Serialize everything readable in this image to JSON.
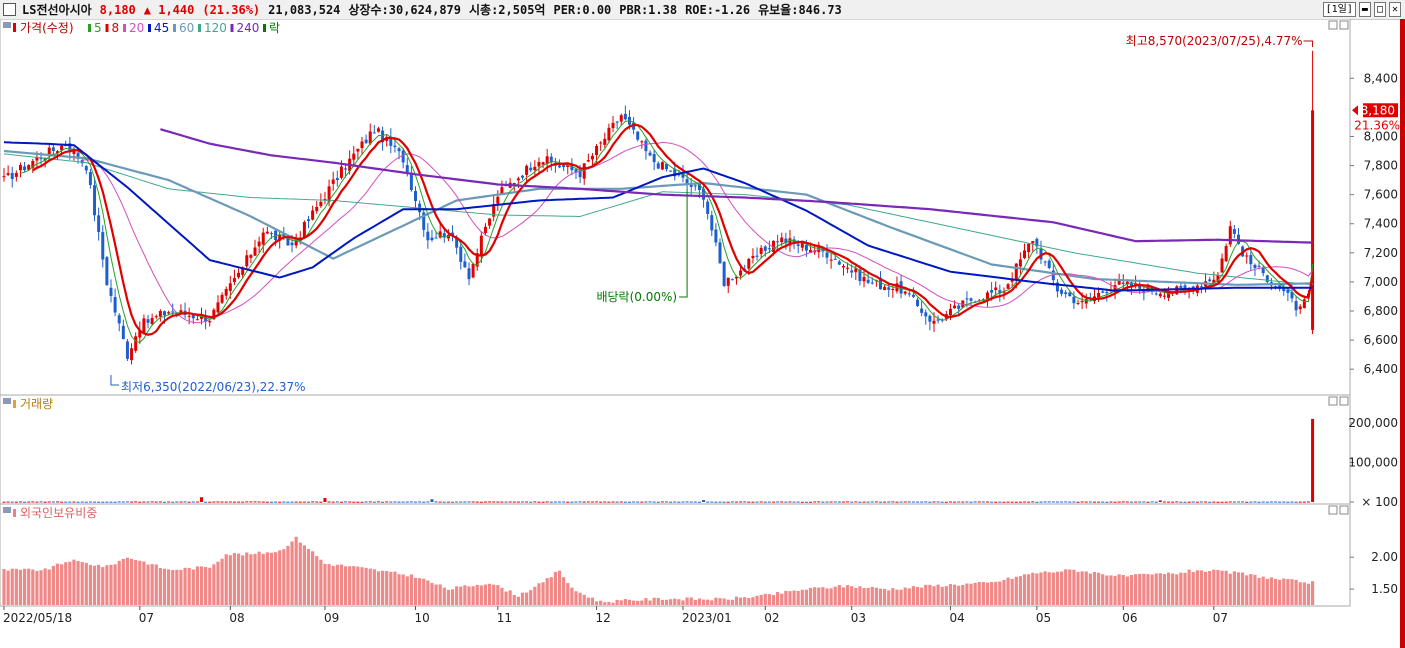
{
  "header": {
    "name": "LS전선아시아",
    "price": "8,180",
    "change": "▲ 1,440",
    "change_pct": "(21.36%)",
    "volume": "21,083,524",
    "listed": "상장수:30,624,879",
    "mcap": "시총:2,505억",
    "per": "PER:0.00",
    "pbr": "PBR:1.38",
    "roe": "ROE:-1.26",
    "float": "유보율:846.73",
    "period": "[1일]"
  },
  "colors": {
    "up": "#e00000",
    "down": "#1e5fd0",
    "ma5": "#2aa02a",
    "ma8": "#e00000",
    "ma20": "#d050c0",
    "ma45": "#0018c0",
    "ma60": "#6a9ab8",
    "ma120": "#40a890",
    "ma240": "#7a28b8",
    "div": "#007a00"
  },
  "chart_data": [
    {
      "type": "line",
      "title": "가격(수정)",
      "legend": [
        {
          "label": "5",
          "color": "#2aa02a"
        },
        {
          "label": "8",
          "color": "#e00000"
        },
        {
          "label": "20",
          "color": "#d050c0"
        },
        {
          "label": "45",
          "color": "#0018c0"
        },
        {
          "label": "60",
          "color": "#6a9ab8"
        },
        {
          "label": "120",
          "color": "#40a890"
        },
        {
          "label": "240",
          "color": "#7a28b8"
        },
        {
          "label": "락",
          "color": "#007a00"
        }
      ],
      "ylim": [
        6250,
        8780
      ],
      "yticks": [
        6400,
        6600,
        6800,
        7000,
        7200,
        7400,
        7600,
        7800,
        8000,
        8400
      ],
      "ytick_labels": [
        "6,400",
        "6,600",
        "6,800",
        "7,000",
        "7,200",
        "7,400",
        "7,600",
        "7,800",
        "8,000",
        "8,400"
      ],
      "current_label": "8,180",
      "current_value": 8180,
      "current_pct": "21.36%",
      "max_annotation": "최고8,570(2023/07/25),4.77%",
      "min_annotation": "최저6,350(2022/06/23),22.37%",
      "dividend_annotation": "배당락(0.00%)",
      "x_labels": [
        "2022/05/18",
        "07",
        "08",
        "09",
        "10",
        "11",
        "12",
        "2023/01",
        "02",
        "03",
        "04",
        "05",
        "06",
        "07"
      ],
      "price_keys": [
        [
          0,
          7700
        ],
        [
          8,
          7850
        ],
        [
          15,
          7950
        ],
        [
          20,
          7800
        ],
        [
          25,
          7000
        ],
        [
          30,
          6500
        ],
        [
          33,
          6700
        ],
        [
          40,
          6800
        ],
        [
          50,
          6750
        ],
        [
          58,
          7100
        ],
        [
          63,
          7350
        ],
        [
          70,
          7250
        ],
        [
          78,
          7600
        ],
        [
          83,
          7800
        ],
        [
          90,
          8050
        ],
        [
          97,
          7850
        ],
        [
          103,
          7300
        ],
        [
          108,
          7350
        ],
        [
          113,
          7050
        ],
        [
          120,
          7600
        ],
        [
          130,
          7850
        ],
        [
          140,
          7750
        ],
        [
          150,
          8150
        ],
        [
          157,
          7850
        ],
        [
          165,
          7700
        ],
        [
          170,
          7600
        ],
        [
          175,
          7000
        ],
        [
          180,
          7100
        ],
        [
          188,
          7300
        ],
        [
          200,
          7200
        ],
        [
          210,
          7000
        ],
        [
          218,
          6950
        ],
        [
          226,
          6720
        ],
        [
          235,
          6880
        ],
        [
          243,
          6950
        ],
        [
          250,
          7300
        ],
        [
          256,
          6950
        ],
        [
          262,
          6850
        ],
        [
          270,
          6990
        ],
        [
          280,
          6940
        ],
        [
          287,
          6940
        ],
        [
          295,
          7050
        ],
        [
          298,
          7380
        ],
        [
          302,
          7150
        ],
        [
          310,
          6960
        ],
        [
          315,
          6800
        ],
        [
          317,
          6920
        ],
        [
          318,
          8180
        ]
      ],
      "ma_keys": {
        "ma45": [
          [
            0,
            7960
          ],
          [
            10,
            7950
          ],
          [
            17,
            7940
          ],
          [
            30,
            7650
          ],
          [
            50,
            7150
          ],
          [
            67,
            7030
          ],
          [
            75,
            7100
          ],
          [
            85,
            7300
          ],
          [
            97,
            7500
          ],
          [
            110,
            7500
          ],
          [
            130,
            7560
          ],
          [
            148,
            7580
          ],
          [
            160,
            7720
          ],
          [
            170,
            7780
          ],
          [
            180,
            7680
          ],
          [
            195,
            7490
          ],
          [
            210,
            7250
          ],
          [
            230,
            7070
          ],
          [
            250,
            7000
          ],
          [
            270,
            6940
          ],
          [
            300,
            6960
          ],
          [
            318,
            6960
          ]
        ],
        "ma60": [
          [
            0,
            7900
          ],
          [
            20,
            7850
          ],
          [
            40,
            7700
          ],
          [
            60,
            7450
          ],
          [
            80,
            7160
          ],
          [
            95,
            7360
          ],
          [
            110,
            7560
          ],
          [
            130,
            7640
          ],
          [
            150,
            7640
          ],
          [
            170,
            7680
          ],
          [
            195,
            7600
          ],
          [
            215,
            7380
          ],
          [
            240,
            7120
          ],
          [
            265,
            7020
          ],
          [
            300,
            6980
          ],
          [
            318,
            6990
          ]
        ],
        "ma120": [
          [
            0,
            7880
          ],
          [
            20,
            7820
          ],
          [
            40,
            7640
          ],
          [
            60,
            7580
          ],
          [
            80,
            7560
          ],
          [
            100,
            7510
          ],
          [
            120,
            7460
          ],
          [
            140,
            7450
          ],
          [
            160,
            7620
          ],
          [
            180,
            7600
          ],
          [
            205,
            7530
          ],
          [
            230,
            7380
          ],
          [
            260,
            7200
          ],
          [
            290,
            7060
          ],
          [
            318,
            6980
          ]
        ],
        "ma240": [
          [
            38,
            8050
          ],
          [
            50,
            7950
          ],
          [
            65,
            7870
          ],
          [
            80,
            7820
          ],
          [
            100,
            7740
          ],
          [
            120,
            7670
          ],
          [
            140,
            7640
          ],
          [
            160,
            7600
          ],
          [
            180,
            7580
          ],
          [
            200,
            7550
          ],
          [
            225,
            7500
          ],
          [
            255,
            7410
          ],
          [
            275,
            7280
          ],
          [
            295,
            7290
          ],
          [
            318,
            7270
          ]
        ]
      }
    },
    {
      "type": "bar",
      "title": "거래량",
      "ylim": [
        0,
        230000
      ],
      "yticks": [
        100,
        100000,
        200000
      ],
      "ytick_labels": [
        "100",
        "100,000",
        "200,000"
      ],
      "last_volume": 21083524,
      "spikes": [
        [
          48,
          12000
        ],
        [
          78,
          10000
        ],
        [
          104,
          7000
        ],
        [
          170,
          5000
        ],
        [
          281,
          4000
        ],
        [
          318,
          210000
        ]
      ]
    },
    {
      "type": "bar",
      "title": "외국인보유비중",
      "ylim": [
        1.25,
        2.6
      ],
      "yticks": [
        1.5,
        2.0
      ],
      "ytick_labels": [
        "1.50",
        "2.00"
      ],
      "value_keys": [
        [
          0,
          1.8
        ],
        [
          10,
          1.8
        ],
        [
          16,
          1.95
        ],
        [
          25,
          1.85
        ],
        [
          30,
          2.0
        ],
        [
          33,
          1.95
        ],
        [
          40,
          1.8
        ],
        [
          50,
          1.85
        ],
        [
          54,
          2.05
        ],
        [
          60,
          2.05
        ],
        [
          67,
          2.1
        ],
        [
          71,
          2.3
        ],
        [
          73,
          2.2
        ],
        [
          78,
          1.9
        ],
        [
          85,
          1.85
        ],
        [
          90,
          1.8
        ],
        [
          95,
          1.75
        ],
        [
          100,
          1.7
        ],
        [
          108,
          1.5
        ],
        [
          118,
          1.6
        ],
        [
          125,
          1.4
        ],
        [
          131,
          1.6
        ],
        [
          135,
          1.8
        ],
        [
          138,
          1.5
        ],
        [
          145,
          1.3
        ],
        [
          160,
          1.35
        ],
        [
          175,
          1.34
        ],
        [
          185,
          1.4
        ],
        [
          195,
          1.5
        ],
        [
          205,
          1.55
        ],
        [
          215,
          1.5
        ],
        [
          225,
          1.55
        ],
        [
          240,
          1.6
        ],
        [
          250,
          1.75
        ],
        [
          260,
          1.8
        ],
        [
          272,
          1.7
        ],
        [
          285,
          1.75
        ],
        [
          290,
          1.8
        ],
        [
          300,
          1.75
        ],
        [
          310,
          1.65
        ],
        [
          318,
          1.6
        ]
      ]
    }
  ]
}
